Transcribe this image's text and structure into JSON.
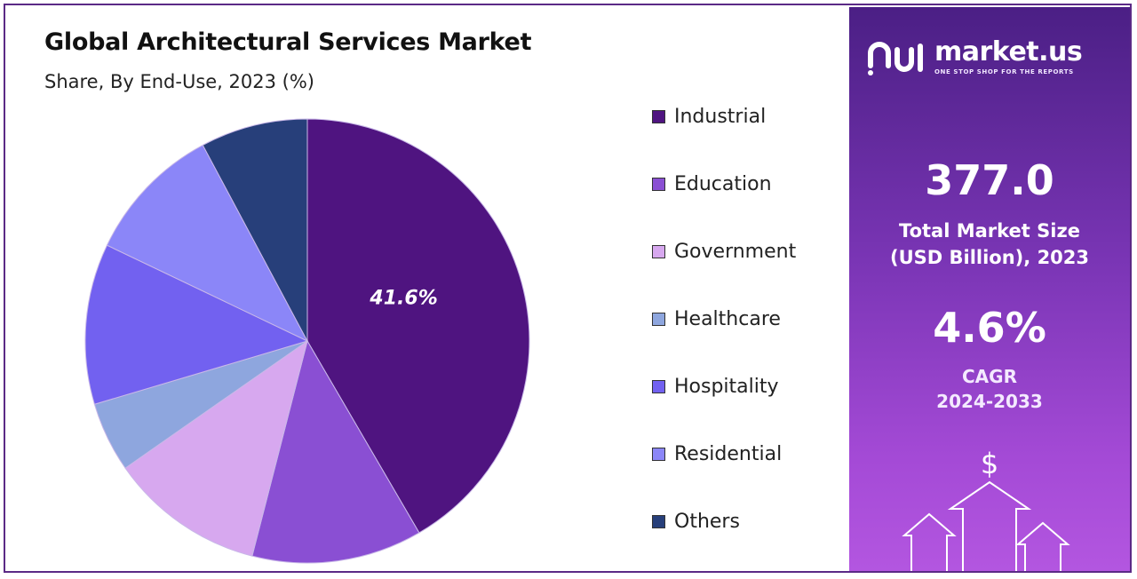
{
  "header": {
    "title": "Global Architectural Services Market",
    "subtitle": "Share, By End-Use, 2023 (%)"
  },
  "chart_data": {
    "type": "pie",
    "title": "Global Architectural Services Market",
    "subtitle": "Share, By End-Use, 2023 (%)",
    "categories": [
      "Industrial",
      "Education",
      "Government",
      "Healthcare",
      "Hospitality",
      "Residential",
      "Others"
    ],
    "values": [
      41.6,
      12.4,
      11.3,
      5.1,
      11.7,
      10.1,
      7.8
    ],
    "colors": [
      "#4f1480",
      "#8a4fd3",
      "#d7a8ef",
      "#8ea6de",
      "#7261f0",
      "#8b86f8",
      "#273f7a"
    ],
    "data_labels": [
      {
        "category": "Industrial",
        "text": "41.6%"
      }
    ],
    "legend_position": "right"
  },
  "legend": {
    "items": [
      "Industrial",
      "Education",
      "Government",
      "Healthcare",
      "Hospitality",
      "Residential",
      "Others"
    ]
  },
  "panel": {
    "brand_name": "market.us",
    "brand_tagline": "ONE STOP SHOP FOR THE REPORTS",
    "market_size_value": "377.0",
    "market_size_label_1": "Total Market Size",
    "market_size_label_2": "(USD Billion), 2023",
    "cagr_value": "4.6%",
    "cagr_label_1": "CAGR",
    "cagr_label_2": "2024-2033",
    "dollar_symbol": "$",
    "logo_icon": "market-us-logo-icon",
    "decoration_icon": "growth-arrows-icon"
  }
}
